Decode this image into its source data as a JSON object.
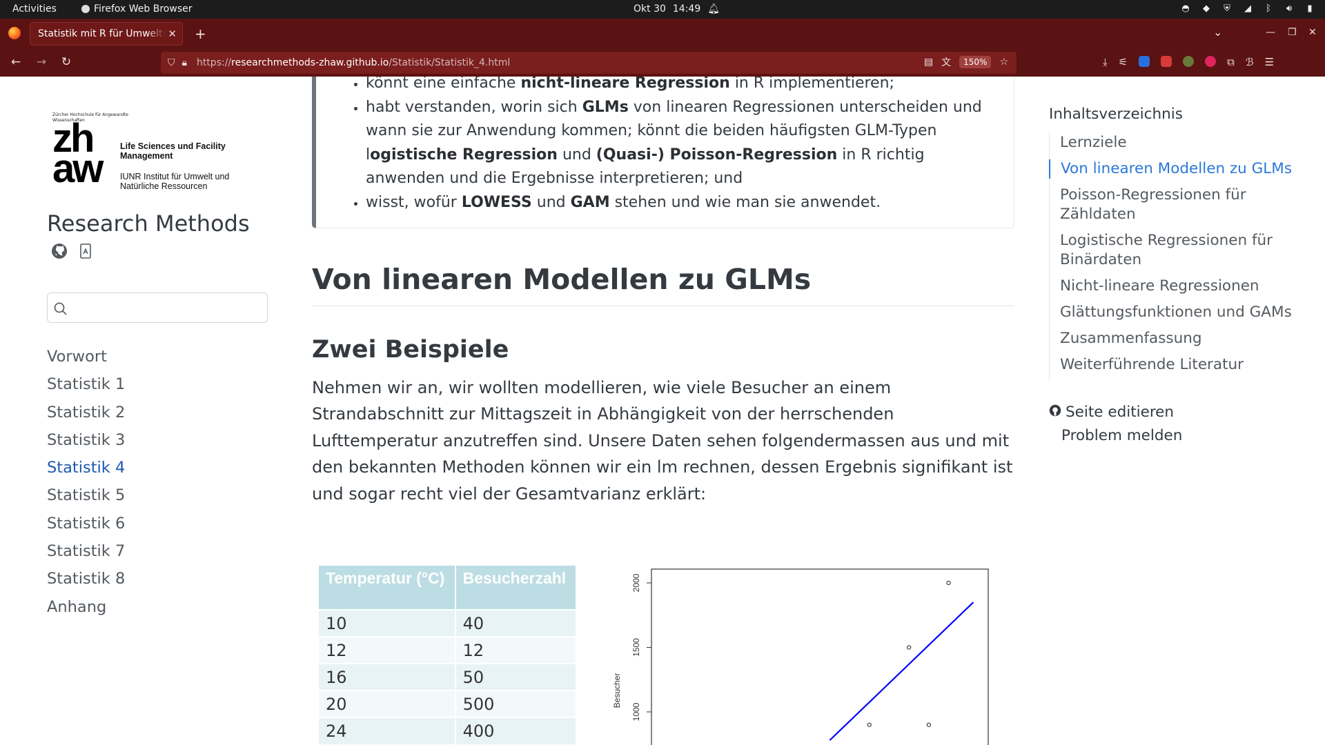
{
  "system_bar": {
    "activities": "Activities",
    "app_name": "Firefox Web Browser",
    "date": "Okt 30",
    "time": "14:49"
  },
  "browser": {
    "tab_title": "Statistik mit R für Umweltwissenschaften",
    "url_scheme": "https://",
    "url_host": "researchmethods-zhaw.github.io",
    "url_path": "/Statistik/Statistik_4.html",
    "zoom": "150%"
  },
  "sidebar": {
    "logo": {
      "university": "Zürcher Hochschule für Angewandte Wissenschaften",
      "mark_line1": "zh",
      "mark_line2": "aw",
      "department": "Life Sciences und Facility Management",
      "institute": "IUNR Institut für Umwelt und Natürliche Ressourcen"
    },
    "title": "Research Methods",
    "search_placeholder": "",
    "nav": [
      {
        "label": "Vorwort",
        "active": false
      },
      {
        "label": "Statistik 1",
        "active": false
      },
      {
        "label": "Statistik 2",
        "active": false
      },
      {
        "label": "Statistik 3",
        "active": false
      },
      {
        "label": "Statistik 4",
        "active": true
      },
      {
        "label": "Statistik 5",
        "active": false
      },
      {
        "label": "Statistik 6",
        "active": false
      },
      {
        "label": "Statistik 7",
        "active": false
      },
      {
        "label": "Statistik 8",
        "active": false
      },
      {
        "label": "Anhang",
        "active": false
      }
    ]
  },
  "main": {
    "goals": {
      "item1": {
        "pre": "könnt eine einfache ",
        "bold": "nicht-lineare Regression",
        "post": " in R implementieren;"
      },
      "item2": {
        "p1": "habt verstanden, worin sich ",
        "b1": "GLMs",
        "p2": " von linearen Regressionen unterscheiden und wann sie zur Anwendung kommen; könnt die beiden häufigsten GLM-Typen l",
        "b2": "ogistische Regression",
        "p3": " und ",
        "b3": "(Quasi-) Poisson-Regression",
        "p4": " in R richtig anwenden und die Ergebnisse interpretieren; und"
      },
      "item3": {
        "p1": "wisst, wofür ",
        "b1": "LOWESS",
        "p2": " und ",
        "b2": "GAM",
        "p3": " stehen und wie man sie anwendet."
      }
    },
    "heading": "Von linearen Modellen zu GLMs",
    "subheading": "Zwei Beispiele",
    "intro": "Nehmen wir an, wir wollten modellieren, wie viele Besucher an einem Strandabschnitt zur Mittagszeit in Abhängigkeit von der herrschenden Lufttemperatur anzutreffen sind. Unsere Daten sehen folgendermassen aus und mit den bekannten Methoden können wir ein lm rechnen, dessen Ergebnis signifikant ist und sogar recht viel der Gesamtvarianz erklärt:",
    "table": {
      "headers": [
        "Temperatur (°C)",
        "Besucherzahl"
      ],
      "rows": [
        [
          "10",
          "40"
        ],
        [
          "12",
          "12"
        ],
        [
          "16",
          "50"
        ],
        [
          "20",
          "500"
        ],
        [
          "24",
          "400"
        ]
      ]
    }
  },
  "chart_data": {
    "type": "scatter",
    "title": "",
    "xlabel": "",
    "ylabel": "Besucher",
    "y_ticks": [
      "1000",
      "1500",
      "2000"
    ],
    "ylim_visible": [
      790,
      2040
    ],
    "xlim": [
      8,
      42
    ],
    "points": [
      {
        "x": 38,
        "y": 2000
      },
      {
        "x": 34,
        "y": 1500
      },
      {
        "x": 36,
        "y": 900
      },
      {
        "x": 30,
        "y": 900
      }
    ],
    "fit_line": {
      "x": [
        26,
        40.5
      ],
      "y": [
        780,
        1850
      ],
      "color": "#0000ff"
    }
  },
  "toc": {
    "title": "Inhaltsverzeichnis",
    "items": [
      {
        "label": "Lernziele",
        "active": false
      },
      {
        "label": "Von linearen Modellen zu GLMs",
        "active": true
      },
      {
        "label": "Poisson-Regressionen für Zähldaten",
        "active": false
      },
      {
        "label": "Logistische Regressionen für Binärdaten",
        "active": false
      },
      {
        "label": "Nicht-lineare Regressionen",
        "active": false
      },
      {
        "label": "Glättungsfunktionen und GAMs",
        "active": false
      },
      {
        "label": "Zusammenfassung",
        "active": false
      },
      {
        "label": "Weiterführende Literatur",
        "active": false
      }
    ],
    "edit_page": "Seite editieren",
    "report_issue": "Problem melden"
  },
  "colors": {
    "browser_chrome": "#5b1212",
    "active_link": "#2b78d8",
    "table_header": "#bcdde3",
    "fit_line": "#0000ff"
  }
}
